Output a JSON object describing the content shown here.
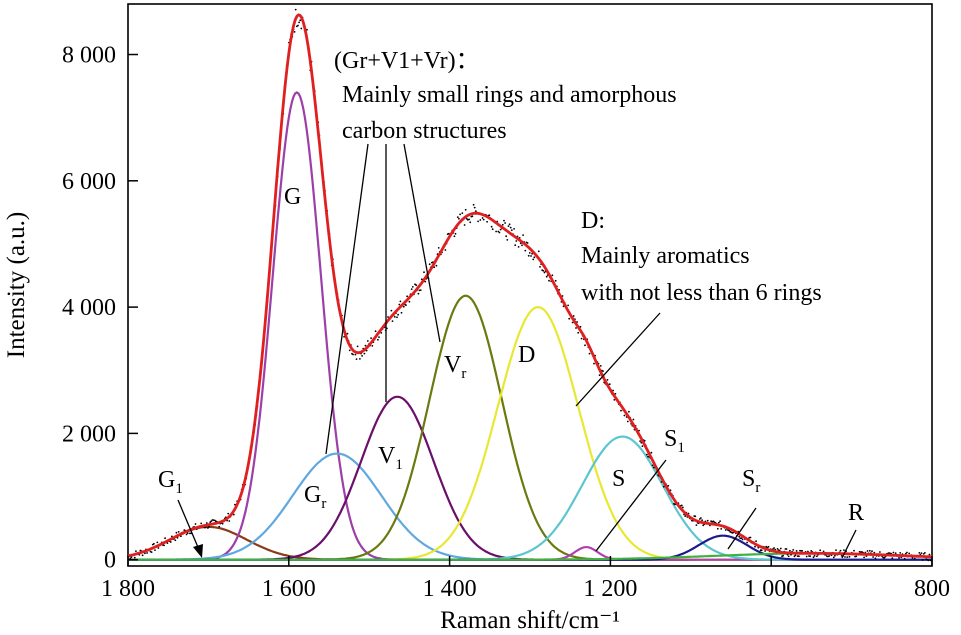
{
  "chart_data": {
    "type": "line",
    "xlabel": "Raman shift/cm⁻¹",
    "ylabel": "Intensity (a.u.)",
    "xlim": [
      1800,
      800
    ],
    "ylim": [
      -100,
      8800
    ],
    "x_reversed": true,
    "x_ticks": [
      1800,
      1600,
      1400,
      1200,
      1000,
      800
    ],
    "x_tick_labels": [
      "1 800",
      "1 600",
      "1 400",
      "1 200",
      "1 000",
      "800"
    ],
    "y_ticks": [
      0,
      2000,
      4000,
      6000,
      8000
    ],
    "y_tick_labels": [
      "0",
      "2 000",
      "4 000",
      "6 000",
      "8 000"
    ],
    "grid": false,
    "bands": [
      {
        "label": "G",
        "sub": "1",
        "center": 1700,
        "height": 520,
        "width": 48,
        "color": "#8b3a1a"
      },
      {
        "label": "G",
        "sub": "",
        "center": 1590,
        "height": 7400,
        "width": 30,
        "color": "#9c3fa8"
      },
      {
        "label": "G",
        "sub": "r",
        "center": 1540,
        "height": 1680,
        "width": 55,
        "color": "#5fa8e0"
      },
      {
        "label": "V",
        "sub": "1",
        "center": 1465,
        "height": 2580,
        "width": 45,
        "color": "#6a0f6a"
      },
      {
        "label": "V",
        "sub": "r",
        "center": 1380,
        "height": 4180,
        "width": 45,
        "color": "#6b7a10"
      },
      {
        "label": "D",
        "sub": "",
        "center": 1290,
        "height": 4000,
        "width": 50,
        "color": "#e8e832"
      },
      {
        "label": "S",
        "sub": "1",
        "center": 1230,
        "height": 200,
        "width": 14,
        "color": "#b040b0"
      },
      {
        "label": "S",
        "sub": "",
        "center": 1185,
        "height": 1950,
        "width": 50,
        "color": "#5cc6d0"
      },
      {
        "label": "S",
        "sub": "r",
        "center": 1060,
        "height": 380,
        "width": 30,
        "color": "#1a1a8c"
      },
      {
        "label": "R",
        "sub": "",
        "center": 950,
        "height": 100,
        "width": 120,
        "color": "#40b040"
      }
    ],
    "envelope": {
      "color": "#e02020"
    },
    "measured": {
      "color": "#000000"
    },
    "annotations": {
      "group_title": "(Gr+V1+Vr)：",
      "group_desc_1": "Mainly small rings and amorphous",
      "group_desc_2": "carbon structures",
      "d_title": "D:",
      "d_desc_1": "Mainly aromatics",
      "d_desc_2": "with not less than 6 rings"
    }
  }
}
